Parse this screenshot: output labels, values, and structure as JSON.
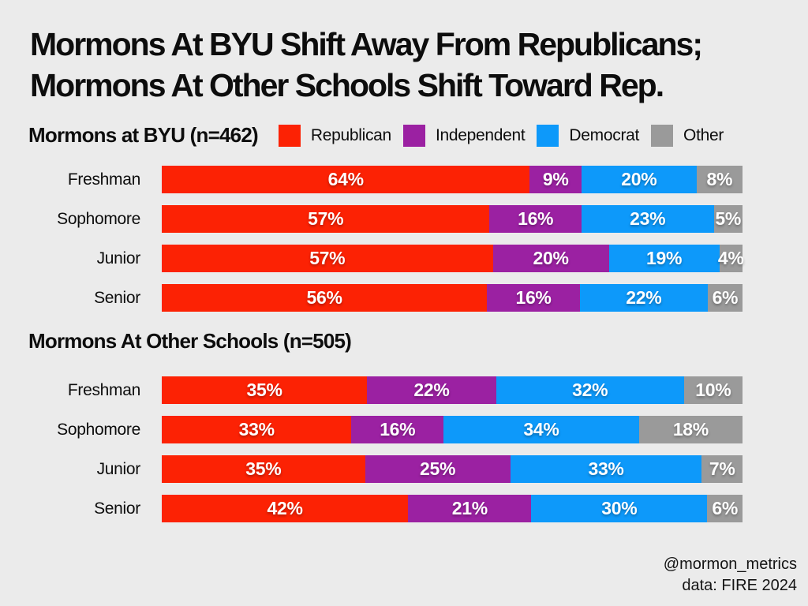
{
  "page": {
    "background_color": "#ebebeb",
    "text_color": "#0d0d0d"
  },
  "title": {
    "line1": "Mormons At BYU Shift Away From Republicans;",
    "line2": "Mormons At Other Schools Shift Toward Rep."
  },
  "legend": {
    "items": [
      {
        "label": "Republican",
        "color": "#fc2204"
      },
      {
        "label": "Independent",
        "color": "#9b21a2"
      },
      {
        "label": "Democrat",
        "color": "#0d99fa"
      },
      {
        "label": "Other",
        "color": "#9a9a9a"
      }
    ]
  },
  "footer": {
    "handle": "@mormon_metrics",
    "source": "data: FIRE 2024"
  },
  "chart_data": [
    {
      "type": "bar",
      "orientation": "horizontal-stacked",
      "title": "Mormons at BYU (n=462)",
      "unit": "%",
      "categories": [
        "Freshman",
        "Sophomore",
        "Junior",
        "Senior"
      ],
      "series": [
        {
          "name": "Republican",
          "color": "#fc2204",
          "values": [
            64,
            57,
            57,
            56
          ]
        },
        {
          "name": "Independent",
          "color": "#9b21a2",
          "values": [
            9,
            16,
            20,
            16
          ]
        },
        {
          "name": "Democrat",
          "color": "#0d99fa",
          "values": [
            20,
            23,
            19,
            22
          ]
        },
        {
          "name": "Other",
          "color": "#9a9a9a",
          "values": [
            8,
            5,
            4,
            6
          ]
        }
      ]
    },
    {
      "type": "bar",
      "orientation": "horizontal-stacked",
      "title": "Mormons At Other Schools (n=505)",
      "unit": "%",
      "categories": [
        "Freshman",
        "Sophomore",
        "Junior",
        "Senior"
      ],
      "series": [
        {
          "name": "Republican",
          "color": "#fc2204",
          "values": [
            35,
            33,
            35,
            42
          ]
        },
        {
          "name": "Independent",
          "color": "#9b21a2",
          "values": [
            22,
            16,
            25,
            21
          ]
        },
        {
          "name": "Democrat",
          "color": "#0d99fa",
          "values": [
            32,
            34,
            33,
            30
          ]
        },
        {
          "name": "Other",
          "color": "#9a9a9a",
          "values": [
            10,
            18,
            7,
            6
          ]
        }
      ]
    }
  ]
}
